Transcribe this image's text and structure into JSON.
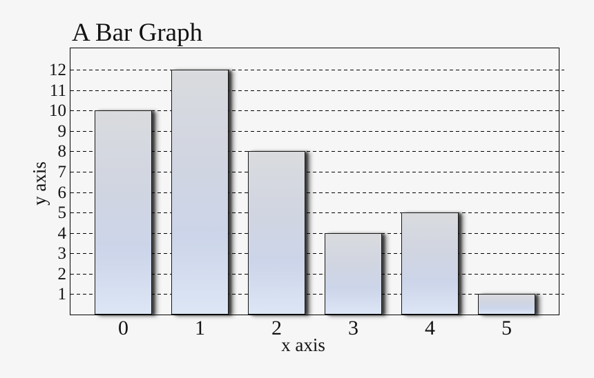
{
  "figure": {
    "background": "#f6f6f6",
    "text_color": "#131313",
    "axis_color": "#000000",
    "gridline_color": "#000000"
  },
  "chart_data": {
    "type": "bar",
    "title": "A Bar Graph",
    "xlabel": "x axis",
    "ylabel": "y axis",
    "categories": [
      "0",
      "1",
      "2",
      "3",
      "4",
      "5"
    ],
    "values": [
      10,
      12,
      8,
      4,
      5,
      1
    ],
    "yticks": [
      1,
      2,
      3,
      4,
      5,
      6,
      7,
      8,
      9,
      10,
      11,
      12
    ],
    "ylim": [
      0,
      13.1
    ],
    "grid": "horizontal-dashed",
    "legend": "none",
    "bar_style": {
      "gradient": [
        "#d9dbde",
        "#d1d5e1",
        "#ccd5e9",
        "#dce6f5"
      ],
      "border_color": "#161616",
      "shadow_color": "rgba(0,0,0,0.55)"
    }
  }
}
